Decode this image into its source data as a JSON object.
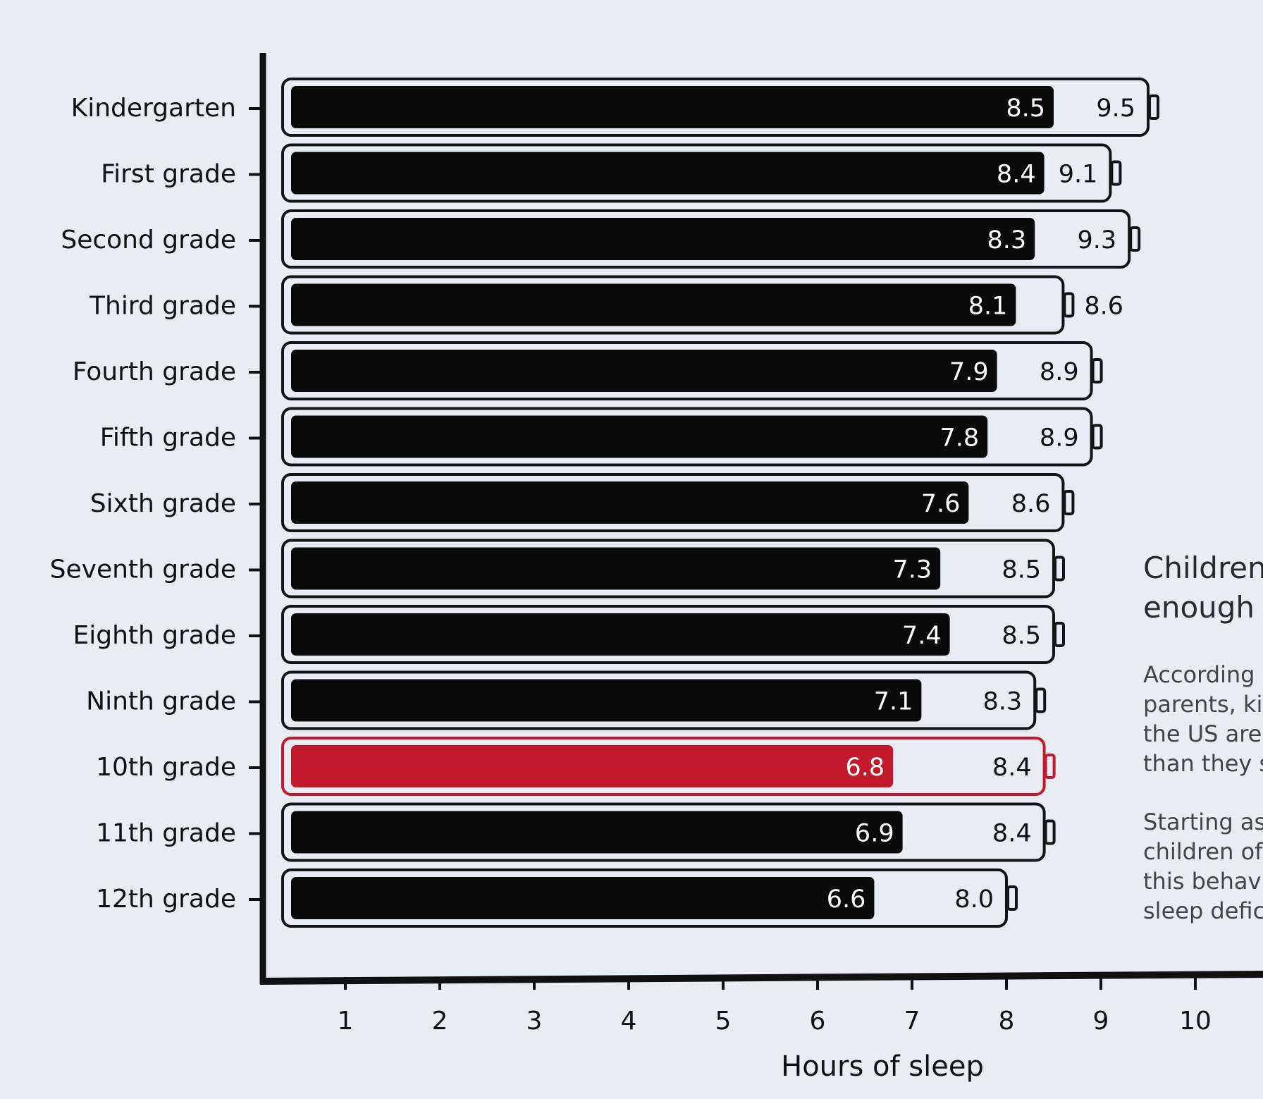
{
  "chart_data": {
    "type": "bar",
    "orientation": "horizontal",
    "categories": [
      "Kindergarten",
      "First grade",
      "Second grade",
      "Third grade",
      "Fourth grade",
      "Fifth grade",
      "Sixth grade",
      "Seventh grade",
      "Eighth grade",
      "Ninth grade",
      "10th grade",
      "11th grade",
      "12th grade"
    ],
    "series": [
      {
        "values": [
          8.5,
          8.4,
          8.3,
          8.1,
          7.9,
          7.8,
          7.6,
          7.3,
          7.4,
          7.1,
          6.8,
          6.9,
          6.6
        ]
      },
      {
        "values": [
          9.5,
          9.1,
          9.3,
          8.6,
          8.9,
          8.9,
          8.6,
          8.5,
          8.5,
          8.3,
          8.4,
          8.4,
          8.0
        ]
      }
    ],
    "highlight_category": "10th grade",
    "colors": {
      "bar": "#0a0a0a",
      "highlight": "#c21a2c",
      "outline": "#141414"
    },
    "xlabel": "Hours of sleep",
    "xticks": [
      1,
      2,
      3,
      4,
      5,
      6,
      7,
      8,
      9,
      10
    ],
    "xlim": [
      0.3,
      10.7
    ],
    "grid": false
  },
  "side_text": {
    "title_lines": [
      "Children",
      "enough"
    ],
    "para1_lines": [
      "According",
      "parents, kid",
      "the US are",
      "than they s"
    ],
    "para2_lines": [
      "Starting as",
      "children of",
      "this behavio",
      "sleep defici"
    ]
  }
}
